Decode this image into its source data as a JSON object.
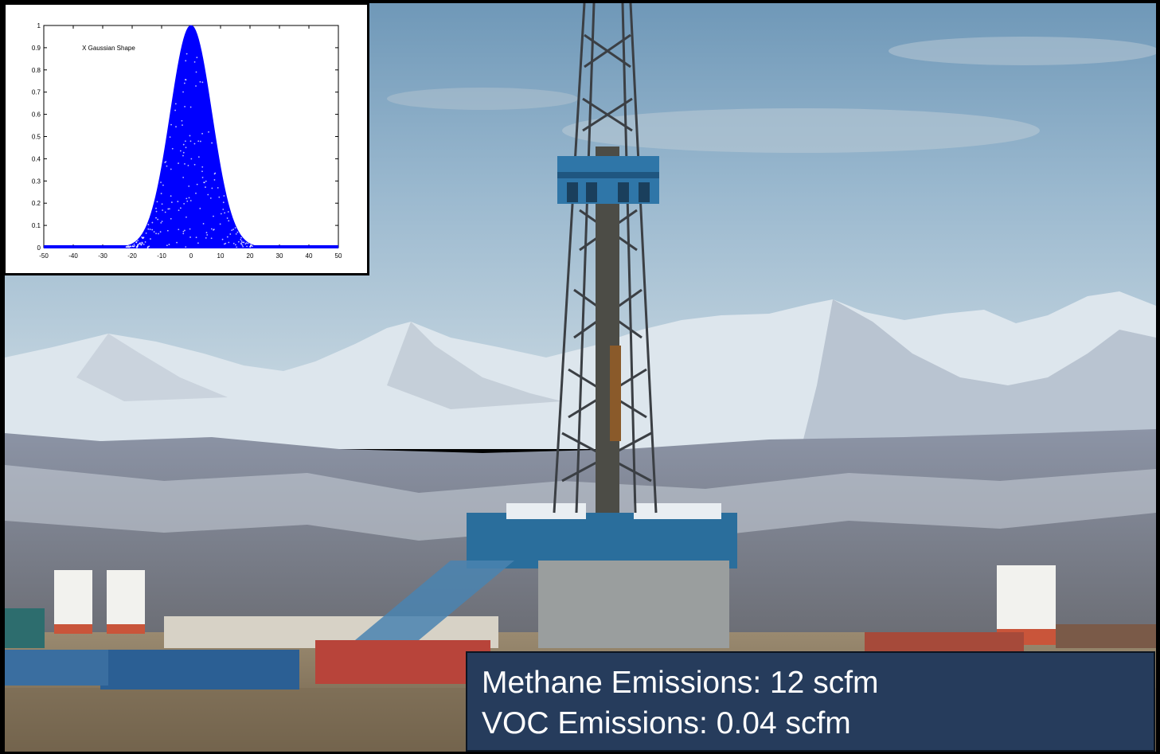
{
  "inset_chart": {
    "chart_data": {
      "type": "scatter",
      "title": "X Gaussian Shape",
      "xlabel": "",
      "ylabel": "",
      "xlim": [
        -50,
        50
      ],
      "ylim": [
        0,
        1
      ],
      "xticks": [
        -50,
        -40,
        -30,
        -20,
        -10,
        0,
        10,
        20,
        30,
        40,
        50
      ],
      "yticks": [
        0,
        0.1,
        0.2,
        0.3,
        0.4,
        0.5,
        0.6,
        0.7,
        0.8,
        0.9,
        1
      ],
      "grid": false,
      "series": [
        {
          "mean": 0,
          "std_dev": 7,
          "peak": 1,
          "color": "#0000ff",
          "distribution": "points filling area under Gaussian curve"
        }
      ]
    }
  },
  "emissions": {
    "methane": "Methane Emissions:  12 scfm",
    "voc": "VOC Emissions: 0.04 scfm"
  },
  "colors": {
    "sky": "#a9c4d8",
    "snow": "#e8eef2",
    "rig_blue": "#2a6e9c",
    "panel": "#263c5c",
    "ground": "#8a7a62"
  }
}
